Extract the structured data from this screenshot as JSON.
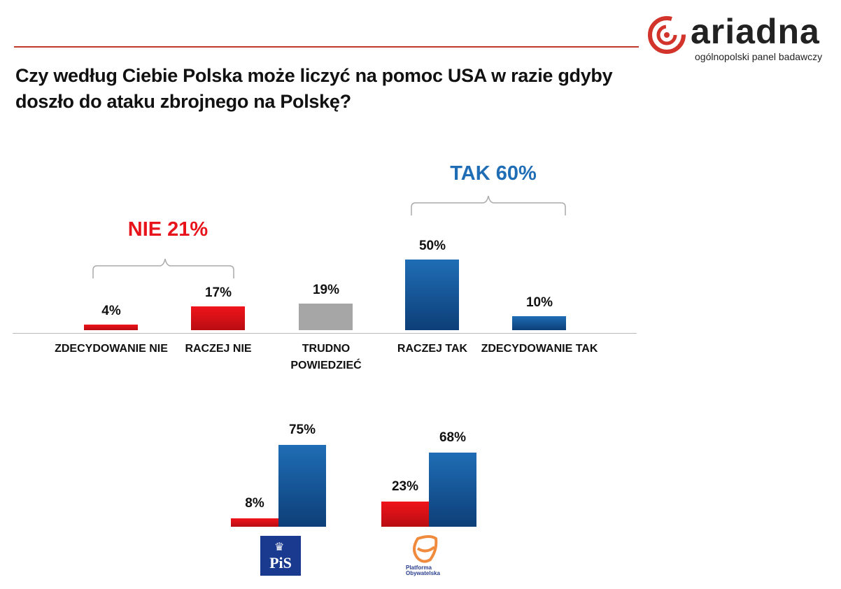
{
  "logo": {
    "name": "ariadna",
    "tagline": "ogólnopolski panel badawczy",
    "color": "#d2332a"
  },
  "title": "Czy według Ciebie Polska może liczyć na pomoc USA w razie gdyby doszło do ataku zbrojnego na Polskę?",
  "groups": [
    {
      "label": "NIE 21%",
      "color": "#e8141b"
    },
    {
      "label": "TAK 60%",
      "color": "#1f6db5"
    }
  ],
  "chart_data": [
    {
      "type": "bar",
      "categories": [
        "ZDECYDOWANIE NIE",
        "RACZEJ NIE",
        "TRUDNO POWIEDZIEĆ",
        "RACZEJ TAK",
        "ZDECYDOWANIE TAK"
      ],
      "values": [
        4,
        17,
        19,
        50,
        10
      ],
      "data_labels": [
        "4%",
        "17%",
        "19%",
        "50%",
        "10%"
      ],
      "colors": [
        "#e8141b",
        "#e8141b",
        "#a6a6a6",
        "#1f6db5",
        "#1f6db5"
      ]
    },
    {
      "type": "bar",
      "categories": [
        "PiS",
        "Platforma Obywatelska"
      ],
      "series": [
        {
          "values": [
            8,
            23
          ],
          "data_labels": [
            "8%",
            "23%"
          ],
          "color": "#e8141b"
        },
        {
          "values": [
            75,
            68
          ],
          "data_labels": [
            "75%",
            "68%"
          ],
          "color": "#1f6db5"
        }
      ]
    }
  ],
  "party_logos": [
    {
      "text": "PiS",
      "color": "#1a3a8f"
    },
    {
      "text": "Platforma Obywatelska",
      "color": "#f08a3c"
    }
  ]
}
